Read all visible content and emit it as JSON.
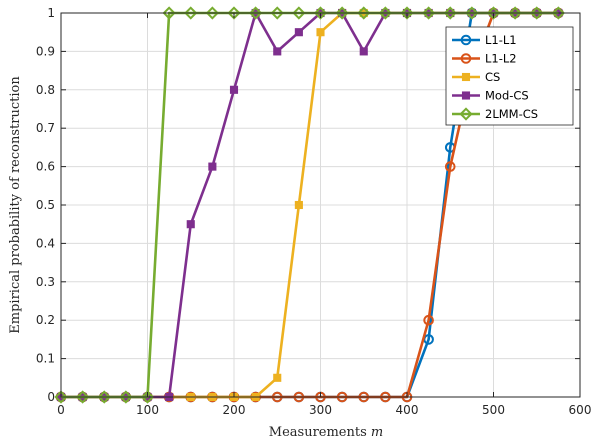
{
  "chart_data": {
    "type": "line",
    "title": "",
    "xlabel": "Measurements",
    "xlabel_var": "m",
    "ylabel": "Empirical probability of reconstruction",
    "xlim": [
      0,
      600
    ],
    "ylim": [
      0,
      1
    ],
    "xticks": [
      0,
      100,
      200,
      300,
      400,
      500,
      600
    ],
    "yticks": [
      0,
      0.1,
      0.2,
      0.3,
      0.4,
      0.5,
      0.6,
      0.7,
      0.8,
      0.9,
      1
    ],
    "ytick_labels": [
      "0",
      "0.1",
      "0.2",
      "0.3",
      "0.4",
      "0.5",
      "0.6",
      "0.7",
      "0.8",
      "0.9",
      "1"
    ],
    "grid": true,
    "legend_position": "top-right",
    "x": [
      0,
      25,
      50,
      75,
      100,
      125,
      150,
      175,
      200,
      225,
      250,
      275,
      300,
      325,
      350,
      375,
      400,
      425,
      450,
      475,
      500,
      525,
      550,
      575
    ],
    "series": [
      {
        "name": "L1-L1",
        "color": "#0072BD",
        "marker": "circle",
        "values": [
          0,
          0,
          0,
          0,
          0,
          0,
          0,
          0,
          0,
          0,
          0,
          0,
          0,
          0,
          0,
          0,
          0,
          0.15,
          0.65,
          1,
          1,
          1,
          1,
          1
        ]
      },
      {
        "name": "L1-L2",
        "color": "#D95319",
        "marker": "circle",
        "values": [
          0,
          0,
          0,
          0,
          0,
          0,
          0,
          0,
          0,
          0,
          0,
          0,
          0,
          0,
          0,
          0,
          0,
          0.2,
          0.6,
          0.85,
          1,
          1,
          1,
          1
        ]
      },
      {
        "name": "CS",
        "color": "#EDB120",
        "marker": "square",
        "values": [
          0,
          0,
          0,
          0,
          0,
          0,
          0,
          0,
          0,
          0,
          0.05,
          0.5,
          0.95,
          1,
          1,
          1,
          1,
          1,
          1,
          1,
          1,
          1,
          1,
          1
        ]
      },
      {
        "name": "Mod-CS",
        "color": "#7E2F8E",
        "marker": "square",
        "values": [
          0,
          0,
          0,
          0,
          0,
          0,
          0.45,
          0.6,
          0.8,
          1,
          0.9,
          0.95,
          1,
          1,
          0.9,
          1,
          1,
          1,
          1,
          1,
          1,
          1,
          1,
          1
        ]
      },
      {
        "name": "2LMM-CS",
        "color": "#77AC30",
        "marker": "diamond",
        "values": [
          0,
          0,
          0,
          0,
          0,
          1,
          1,
          1,
          1,
          1,
          1,
          1,
          1,
          1,
          1,
          1,
          1,
          1,
          1,
          1,
          1,
          1,
          1,
          1
        ]
      }
    ]
  }
}
